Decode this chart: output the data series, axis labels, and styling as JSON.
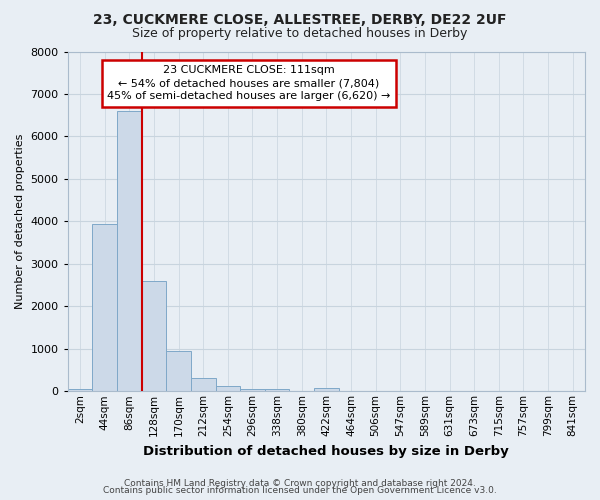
{
  "title1": "23, CUCKMERE CLOSE, ALLESTREE, DERBY, DE22 2UF",
  "title2": "Size of property relative to detached houses in Derby",
  "xlabel": "Distribution of detached houses by size in Derby",
  "ylabel": "Number of detached properties",
  "footer1": "Contains HM Land Registry data © Crown copyright and database right 2024.",
  "footer2": "Contains public sector information licensed under the Open Government Licence v3.0.",
  "bar_labels": [
    "2sqm",
    "44sqm",
    "86sqm",
    "128sqm",
    "170sqm",
    "212sqm",
    "254sqm",
    "296sqm",
    "338sqm",
    "380sqm",
    "422sqm",
    "464sqm",
    "506sqm",
    "547sqm",
    "589sqm",
    "631sqm",
    "673sqm",
    "715sqm",
    "757sqm",
    "799sqm",
    "841sqm"
  ],
  "bar_values": [
    60,
    3950,
    6600,
    2600,
    950,
    320,
    130,
    60,
    60,
    0,
    70,
    0,
    0,
    0,
    0,
    0,
    0,
    0,
    0,
    0,
    0
  ],
  "bar_color": "#ccd9e8",
  "bar_edge_color": "#7fa8c8",
  "ylim": [
    0,
    8000
  ],
  "yticks": [
    0,
    1000,
    2000,
    3000,
    4000,
    5000,
    6000,
    7000,
    8000
  ],
  "vline_x": 2.5,
  "vline_color": "#cc0000",
  "annotation_line1": "23 CUCKMERE CLOSE: 111sqm",
  "annotation_line2": "← 54% of detached houses are smaller (7,804)",
  "annotation_line3": "45% of semi-detached houses are larger (6,620) →",
  "annotation_box_color": "#ffffff",
  "annotation_box_edge": "#cc0000",
  "bg_color": "#e8eef4",
  "plot_bg_color": "#e8eef4",
  "grid_color": "#c8d4de",
  "title1_fontsize": 10,
  "title2_fontsize": 9,
  "xlabel_fontsize": 9.5,
  "ylabel_fontsize": 8,
  "tick_fontsize": 7.5,
  "footer_fontsize": 6.5
}
